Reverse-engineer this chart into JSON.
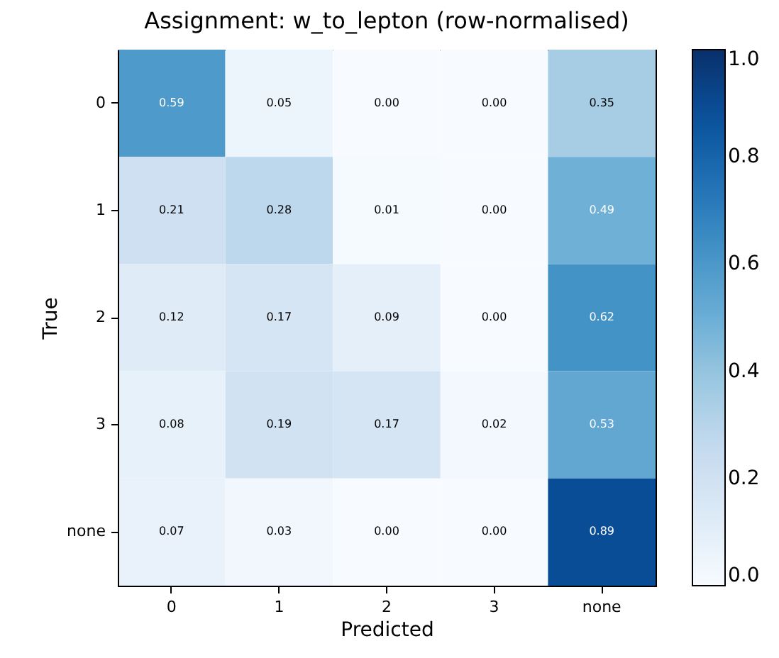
{
  "chart_data": {
    "type": "heatmap",
    "title": "Assignment: w_to_lepton (row-normalised)",
    "xlabel": "Predicted",
    "ylabel": "True",
    "categories": [
      "0",
      "1",
      "2",
      "3",
      "none"
    ],
    "y_categories": [
      "0",
      "1",
      "2",
      "3",
      "none"
    ],
    "cells": [
      [
        0.59,
        0.05,
        0.0,
        0.0,
        0.35
      ],
      [
        0.21,
        0.28,
        0.01,
        0.0,
        0.49
      ],
      [
        0.12,
        0.17,
        0.09,
        0.0,
        0.62
      ],
      [
        0.08,
        0.19,
        0.17,
        0.02,
        0.53
      ],
      [
        0.07,
        0.03,
        0.0,
        0.0,
        0.89
      ]
    ],
    "cell_labels": [
      [
        "0.59",
        "0.05",
        "0.00",
        "0.00",
        "0.35"
      ],
      [
        "0.21",
        "0.28",
        "0.01",
        "0.00",
        "0.49"
      ],
      [
        "0.12",
        "0.17",
        "0.09",
        "0.00",
        "0.62"
      ],
      [
        "0.08",
        "0.19",
        "0.17",
        "0.02",
        "0.53"
      ],
      [
        "0.07",
        "0.03",
        "0.00",
        "0.00",
        "0.89"
      ]
    ],
    "clim": [
      0,
      1
    ],
    "cticks": [
      {
        "value": 0,
        "label": "0.0"
      },
      {
        "value": 0.2,
        "label": "0.2"
      },
      {
        "value": 0.4,
        "label": "0.4"
      },
      {
        "value": 0.6,
        "label": "0.6"
      },
      {
        "value": 0.8,
        "label": "0.8"
      },
      {
        "value": 1,
        "label": "1.0"
      }
    ]
  }
}
